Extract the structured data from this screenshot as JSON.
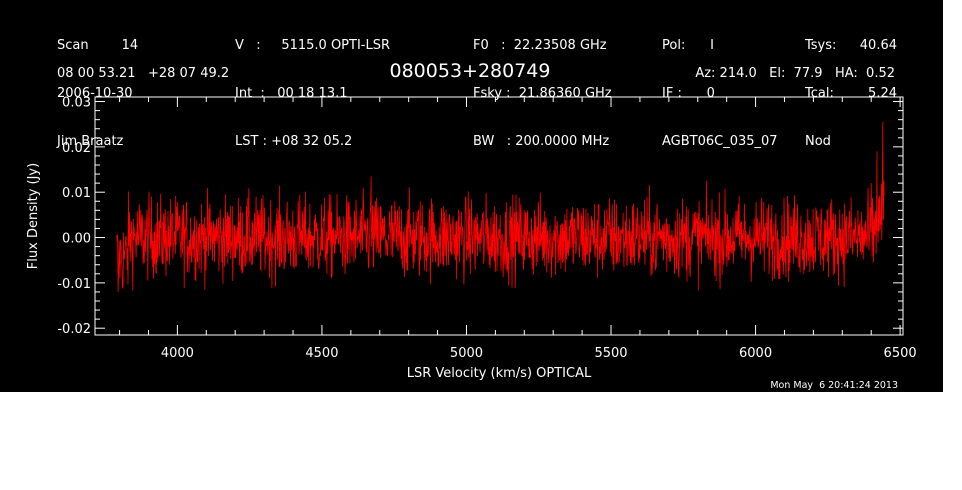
{
  "header": {
    "col1": [
      "Scan        14",
      "2006-10-30",
      "Jim Braatz"
    ],
    "col2": [
      "V   :     5115.0 OPTI-LSR",
      "Int  :   00 18 13.1",
      "LST : +08 32 05.2"
    ],
    "col3": [
      "F0   :  22.23508 GHz",
      "Fsky :  21.86360 GHz",
      "BW   : 200.0000 MHz"
    ],
    "col4": [
      "Pol:      I",
      "IF :      0",
      "AGBT06C_035_07"
    ],
    "col5a": [
      "Tsys:",
      "Tcal:",
      "Nod"
    ],
    "col5b": [
      "40.64",
      "5.24",
      ""
    ],
    "source_coords": "08 00 53.21   +28 07 49.2",
    "source_name": "080053+280749",
    "az_el_ha": "Az: 214.0   El:  77.9   HA:  0.52",
    "datestamp": "Mon May  6 20:41:24 2013"
  },
  "colors": {
    "background": "#000000",
    "axes": "#ffffff",
    "trace": "#ff0000"
  },
  "chart_data": {
    "type": "line",
    "xlabel": "LSR Velocity (km/s) OPTICAL",
    "ylabel": "Flux Density (Jy)",
    "xlim": [
      3715,
      6510
    ],
    "ylim": [
      -0.0215,
      0.031
    ],
    "xticks": [
      4000,
      4500,
      5000,
      5500,
      6000,
      6500
    ],
    "xtick_labels": [
      "4000",
      "4500",
      "5000",
      "5500",
      "6000",
      "6500"
    ],
    "yticks": [
      -0.02,
      -0.01,
      0.0,
      0.01,
      0.02,
      0.03
    ],
    "ytick_labels": [
      "-0.02",
      "-0.01",
      "0.00",
      "0.01",
      "0.02",
      "0.03"
    ],
    "series": [
      {
        "color": "#ff0000",
        "x_range": [
          3790,
          6445
        ],
        "noise_rms": 0.0045,
        "baseline": 0.0,
        "features": [
          {
            "x": 3795,
            "y": -0.012
          },
          {
            "x": 3810,
            "y": -0.011
          },
          {
            "x": 4670,
            "y": 0.0135
          },
          {
            "x": 6400,
            "y": 0.012
          },
          {
            "x": 6420,
            "y": 0.019
          },
          {
            "x": 6440,
            "y": 0.0255
          }
        ]
      }
    ]
  }
}
